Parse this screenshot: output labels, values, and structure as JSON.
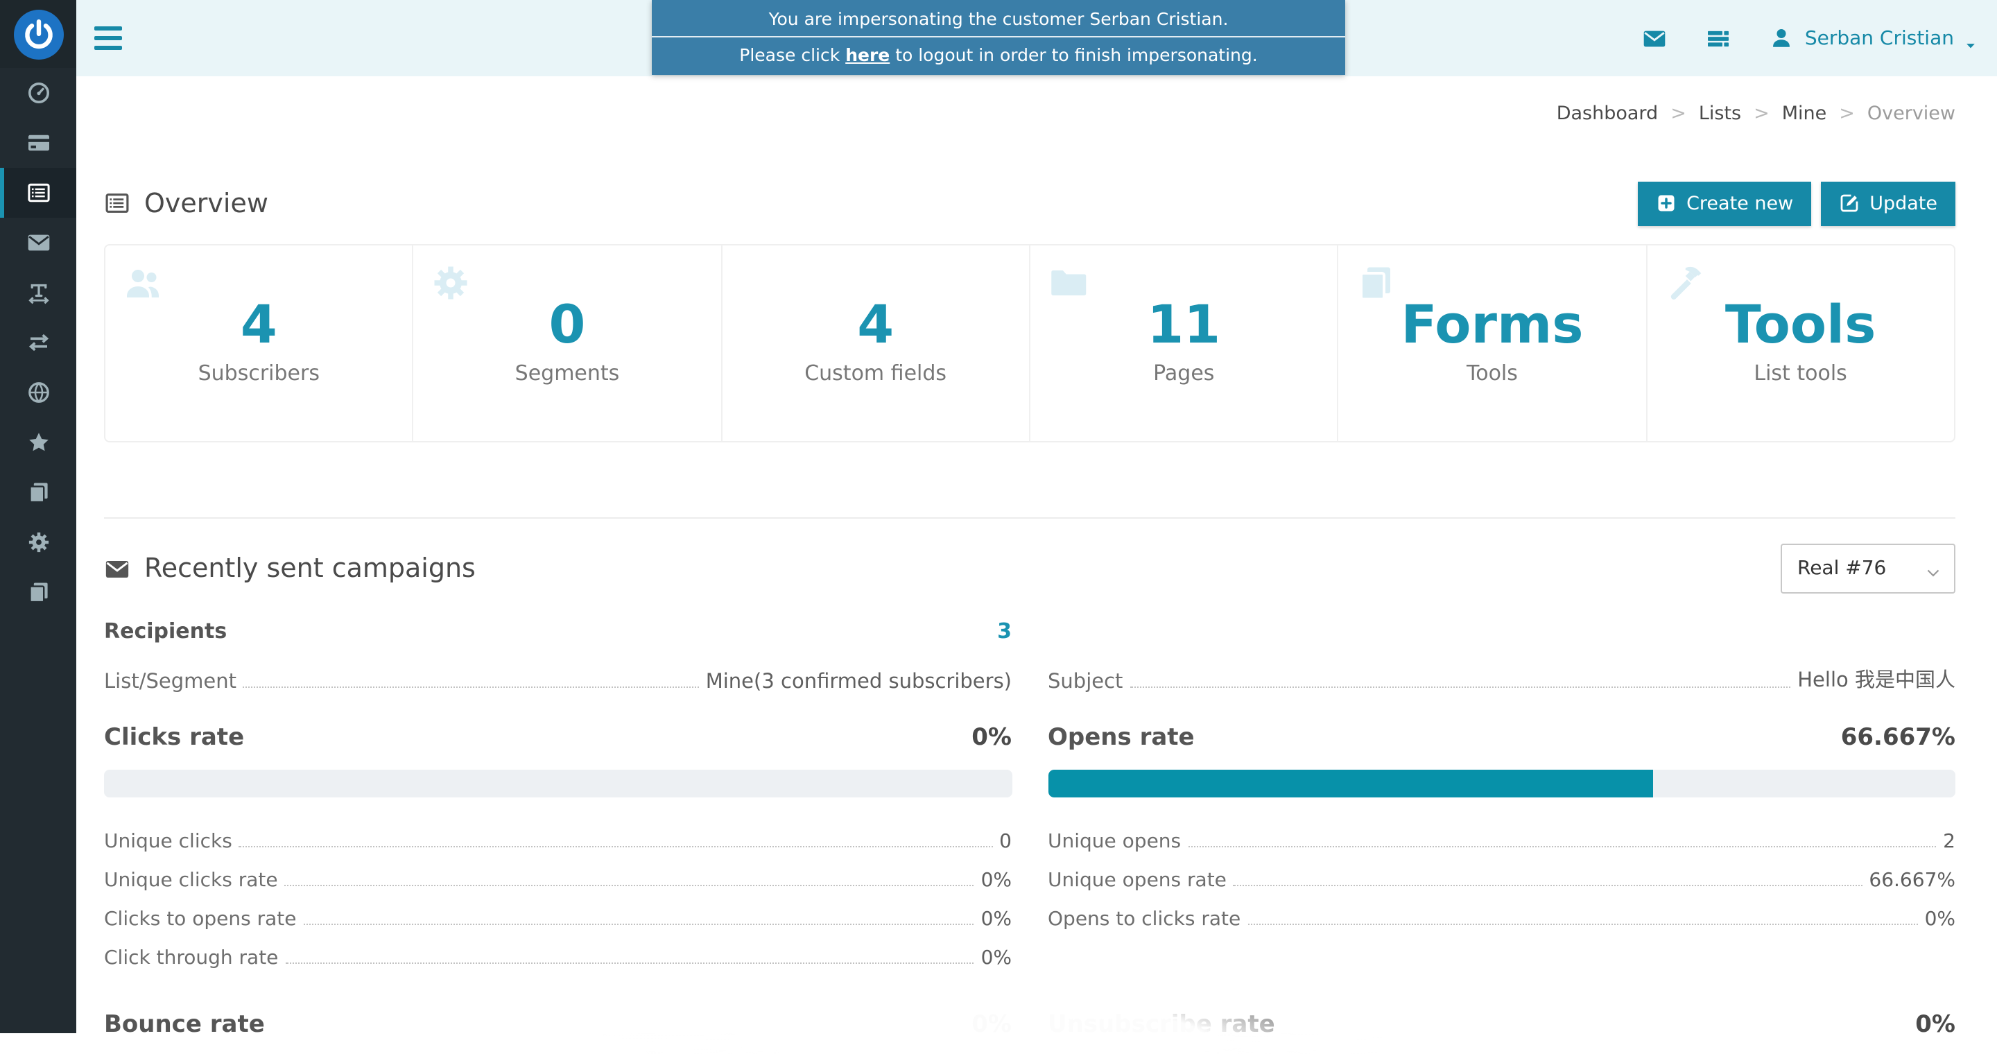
{
  "banner": {
    "line1": "You are impersonating the customer Serban Cristian.",
    "line2_prefix": "Please click ",
    "line2_link": "here",
    "line2_suffix": " to logout in order to finish impersonating."
  },
  "topbar": {
    "user_name": "Serban Cristian",
    "icons": [
      "envelope-icon",
      "menu-list-icon",
      "user-icon",
      "caret-down-icon"
    ]
  },
  "sidebar": {
    "logo_icon": "power-icon",
    "items": [
      {
        "icon": "dashboard-gauge-icon",
        "active": false
      },
      {
        "icon": "price-plans-card-icon",
        "active": false
      },
      {
        "icon": "lists-icon",
        "active": true
      },
      {
        "icon": "campaigns-envelope-icon",
        "active": false
      },
      {
        "icon": "templates-text-width-icon",
        "active": false
      },
      {
        "icon": "transactional-exchange-icon",
        "active": false
      },
      {
        "icon": "surveys-globe-icon",
        "active": false
      },
      {
        "icon": "featured-star-icon",
        "active": false
      },
      {
        "icon": "pages-copy-icon",
        "active": false
      },
      {
        "icon": "settings-gear-icon",
        "active": false
      },
      {
        "icon": "articles-copy-icon",
        "active": false
      }
    ]
  },
  "breadcrumb": {
    "items": [
      "Dashboard",
      "Lists",
      "Mine",
      "Overview"
    ],
    "separator": ">"
  },
  "page": {
    "title": "Overview",
    "title_icon": "list-alt-icon",
    "create_button": "Create new",
    "create_icon": "plus-square-icon",
    "update_button": "Update",
    "update_icon": "edit-icon"
  },
  "stat_cards": [
    {
      "value": "4",
      "label": "Subscribers",
      "icon": "users-icon"
    },
    {
      "value": "0",
      "label": "Segments",
      "icon": "gear-icon"
    },
    {
      "value": "4",
      "label": "Custom fields",
      "icon": ""
    },
    {
      "value": "11",
      "label": "Pages",
      "icon": "folder-icon"
    },
    {
      "value": "Forms",
      "label": "Tools",
      "icon": "copy-icon"
    },
    {
      "value": "Tools",
      "label": "List tools",
      "icon": "hammer-icon"
    }
  ],
  "campaigns": {
    "title": "Recently sent campaigns",
    "title_icon": "envelope-icon",
    "selector_value": "Real #76",
    "recipients": {
      "label": "Recipients",
      "value": "3"
    },
    "list_segment": {
      "label": "List/Segment",
      "value": "Mine(3 confirmed subscribers)"
    },
    "subject": {
      "label": "Subject",
      "value": "Hello 我是中国人"
    },
    "clicks": {
      "label": "Clicks rate",
      "value": "0%",
      "percent": 0,
      "details": [
        {
          "label": "Unique clicks",
          "value": "0"
        },
        {
          "label": "Unique clicks rate",
          "value": "0%"
        },
        {
          "label": "Clicks to opens rate",
          "value": "0%"
        },
        {
          "label": "Click through rate",
          "value": "0%"
        }
      ]
    },
    "opens": {
      "label": "Opens rate",
      "value": "66.667%",
      "percent": 66.667,
      "details": [
        {
          "label": "Unique opens",
          "value": "2"
        },
        {
          "label": "Unique opens rate",
          "value": "66.667%"
        },
        {
          "label": "Opens to clicks rate",
          "value": "0%"
        }
      ]
    },
    "bounce": {
      "label": "Bounce rate",
      "value": "0%"
    },
    "unsubscribe": {
      "label": "Unsubscribe rate",
      "value": "0%"
    }
  },
  "colors": {
    "accent": "#1689a7",
    "accent_bright": "#1b93b1",
    "banner": "#3a7ea8",
    "sidebar": "#222b31",
    "sidebar_logo": "#1e272c",
    "sidebar_active": "#1b242a",
    "logo_blue": "#1d73c4",
    "topbar": "#e9f5f8",
    "watermark": "#daedf4",
    "progress_fill": "#0791a9",
    "progress_bg": "#edf0f3"
  }
}
